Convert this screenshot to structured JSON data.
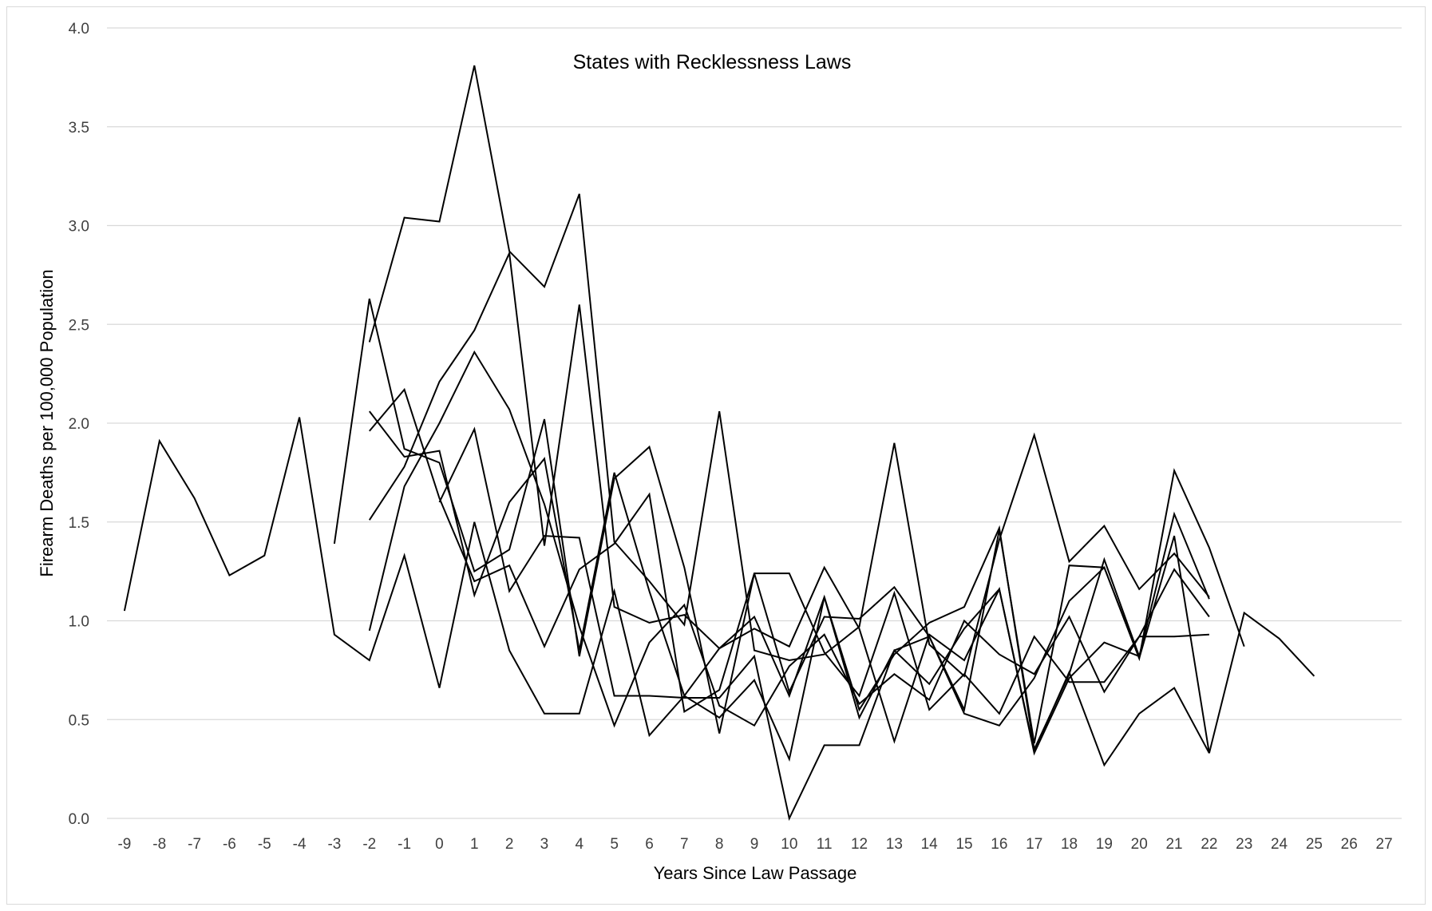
{
  "chart_data": {
    "type": "line",
    "title": "States with Recklessness Laws",
    "xlabel": "Years Since Law Passage",
    "ylabel": "Firearm Deaths per 100,000 Population",
    "x": [
      -9,
      -8,
      -7,
      -6,
      -5,
      -4,
      -3,
      -2,
      -1,
      0,
      1,
      2,
      3,
      4,
      5,
      6,
      7,
      8,
      9,
      10,
      11,
      12,
      13,
      14,
      15,
      16,
      17,
      18,
      19,
      20,
      21,
      22,
      23,
      24,
      25,
      26,
      27
    ],
    "x_tick_labels": [
      "-9",
      "-8",
      "-7",
      "-6",
      "-5",
      "-4",
      "-3",
      "-2",
      "-1",
      "0",
      "1",
      "2",
      "3",
      "4",
      "5",
      "6",
      "7",
      "8",
      "9",
      "10",
      "11",
      "12",
      "13",
      "14",
      "15",
      "16",
      "17",
      "18",
      "19",
      "20",
      "21",
      "22",
      "23",
      "24",
      "25",
      "26",
      "27"
    ],
    "ylim": [
      0,
      4
    ],
    "y_ticks": [
      0,
      0.5,
      1,
      1.5,
      2,
      2.5,
      3,
      3.5,
      4
    ],
    "y_tick_labels": [
      "0.0",
      "0.5",
      "1.0",
      "1.5",
      "2.0",
      "2.5",
      "3.0",
      "3.5",
      "4.0"
    ],
    "grid": "horizontal",
    "legend": "none",
    "line_color": "#000000",
    "series": [
      {
        "x": [
          -9,
          -8,
          -7,
          -6,
          -5,
          -4,
          -3,
          -2,
          -1,
          0,
          1,
          2,
          3,
          4,
          5,
          6,
          7,
          8,
          9,
          10,
          11,
          12,
          13,
          14,
          15,
          16,
          17,
          18,
          19,
          20,
          21,
          22,
          23,
          24,
          25
        ],
        "values": [
          1.05,
          1.91,
          1.62,
          1.23,
          1.33,
          2.03,
          0.93,
          0.8,
          1.33,
          0.66,
          1.5,
          0.85,
          0.53,
          0.53,
          1.15,
          0.42,
          0.62,
          0.51,
          0.7,
          0.3,
          1.12,
          0.51,
          0.85,
          0.92,
          0.53,
          0.47,
          0.71,
          1.1,
          1.27,
          0.81,
          1.43,
          0.33,
          1.04,
          0.91,
          0.72
        ]
      },
      {
        "x": [
          -3,
          -2,
          -1,
          0,
          1,
          2,
          3,
          4,
          5,
          6,
          7,
          8,
          9,
          10,
          11,
          12,
          13,
          14,
          15,
          16,
          17,
          18,
          19,
          20,
          21,
          22,
          23
        ],
        "values": [
          1.39,
          2.63,
          1.87,
          1.8,
          1.25,
          1.36,
          2.02,
          0.82,
          1.72,
          1.88,
          1.27,
          0.43,
          1.24,
          0.64,
          1.02,
          1.01,
          1.17,
          0.92,
          0.55,
          1.46,
          0.38,
          1.28,
          1.27,
          0.81,
          1.76,
          1.37,
          0.87
        ]
      },
      {
        "x": [
          -2,
          -1,
          0,
          1,
          2,
          3,
          4,
          5,
          6,
          7,
          8,
          9,
          10,
          11,
          12,
          13,
          14,
          15,
          16,
          17,
          18,
          19,
          20,
          21,
          22
        ],
        "values": [
          2.41,
          3.04,
          3.02,
          3.81,
          2.87,
          2.69,
          3.16,
          1.4,
          1.2,
          0.98,
          2.06,
          0.85,
          0.8,
          0.83,
          0.97,
          1.9,
          0.88,
          0.72,
          1.41,
          1.94,
          1.3,
          1.48,
          1.16,
          1.34,
          1.12
        ]
      },
      {
        "x": [
          -2,
          -1,
          0,
          1,
          2,
          3,
          4,
          5,
          6,
          7,
          8,
          9,
          10,
          11,
          12,
          13,
          14,
          15,
          16,
          17,
          18,
          19,
          20,
          21,
          22
        ],
        "values": [
          1.96,
          2.17,
          1.62,
          1.2,
          1.28,
          0.87,
          1.26,
          1.39,
          1.64,
          0.54,
          0.65,
          1.24,
          1.24,
          0.84,
          0.62,
          1.14,
          0.55,
          0.73,
          0.53,
          0.92,
          0.69,
          0.69,
          0.92,
          0.92,
          0.93
        ]
      },
      {
        "x": [
          -2,
          -1,
          0,
          1,
          2,
          3,
          4,
          5,
          6,
          7,
          8,
          9,
          10,
          11,
          12,
          13,
          14,
          15,
          16,
          17,
          18,
          19,
          20,
          21,
          22
        ],
        "values": [
          1.51,
          1.78,
          2.21,
          2.47,
          2.86,
          1.38,
          2.6,
          1.07,
          0.99,
          1.03,
          0.86,
          0.96,
          0.87,
          1.27,
          0.96,
          0.39,
          0.93,
          0.8,
          1.16,
          0.33,
          0.71,
          0.89,
          0.82,
          1.54,
          1.11
        ]
      },
      {
        "x": [
          -2,
          -1,
          0,
          1,
          2,
          3,
          4,
          5,
          6,
          7,
          8,
          9,
          10,
          11,
          12,
          13,
          14,
          15,
          16,
          17,
          18,
          19,
          20,
          21,
          22
        ],
        "values": [
          0.95,
          1.68,
          2.0,
          2.36,
          2.07,
          1.59,
          0.97,
          0.47,
          0.89,
          1.08,
          0.57,
          0.47,
          0.77,
          0.93,
          0.58,
          0.73,
          0.6,
          1.0,
          0.83,
          0.73,
          1.02,
          0.64,
          0.92,
          1.26,
          1.02
        ]
      },
      {
        "x": [
          -2,
          -1,
          0,
          1,
          2,
          3,
          4,
          5,
          6,
          7,
          8,
          9,
          10,
          11,
          12,
          13,
          14,
          15,
          16,
          17,
          18,
          19,
          20
        ],
        "values": [
          2.06,
          1.83,
          1.86,
          1.13,
          1.6,
          1.82,
          0.85,
          1.75,
          1.15,
          0.62,
          0.86,
          1.02,
          0.62,
          1.12,
          0.55,
          0.83,
          0.99,
          1.07,
          1.47,
          0.35,
          0.73,
          1.31,
          0.82
        ]
      },
      {
        "x": [
          0,
          1,
          2,
          3,
          4,
          5,
          6,
          7,
          8,
          9,
          10,
          11,
          12,
          13,
          14,
          15,
          16,
          17,
          18,
          19,
          20,
          21,
          22
        ],
        "values": [
          1.6,
          1.97,
          1.15,
          1.43,
          1.42,
          0.62,
          0.62,
          0.61,
          0.61,
          0.82,
          0.0,
          0.37,
          0.37,
          0.85,
          0.68,
          0.96,
          1.16,
          0.34,
          0.74,
          0.27,
          0.53,
          0.66,
          0.33
        ]
      }
    ]
  }
}
